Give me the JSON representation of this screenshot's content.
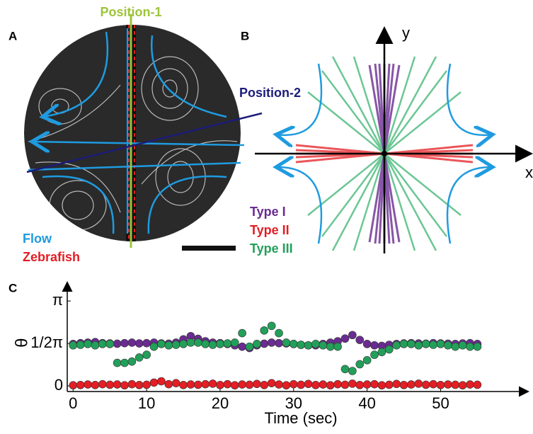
{
  "panels": {
    "a": {
      "label": "A",
      "position_1": "Position-1",
      "position_2": "Position-2",
      "flow": "Flow",
      "zebrafish": "Zebrafish"
    },
    "b": {
      "label": "B",
      "x_axis": "x",
      "y_axis": "y",
      "type_1": "Type I",
      "type_2": "Type II",
      "type_3": "Type III"
    },
    "c": {
      "label": "C"
    }
  },
  "chart_data": {
    "type": "scatter",
    "x_label": "Time (sec)",
    "y_label": "θ",
    "x": [
      0,
      1,
      2,
      3,
      4,
      5,
      6,
      7,
      8,
      9,
      10,
      11,
      12,
      13,
      14,
      15,
      16,
      17,
      18,
      19,
      20,
      21,
      22,
      23,
      24,
      25,
      26,
      27,
      28,
      29,
      30,
      31,
      32,
      33,
      34,
      35,
      36,
      37,
      38,
      39,
      40,
      41,
      42,
      43,
      44,
      45,
      46,
      47,
      48,
      49,
      50,
      51,
      52,
      53,
      54,
      55
    ],
    "series": [
      {
        "name": "Type I",
        "color": "#6a2c91",
        "values": [
          1.55,
          1.58,
          1.6,
          1.62,
          1.58,
          1.57,
          1.56,
          1.58,
          1.6,
          1.57,
          1.58,
          1.6,
          1.57,
          1.56,
          1.6,
          1.72,
          1.84,
          1.74,
          1.65,
          1.6,
          1.58,
          1.55,
          1.5,
          1.45,
          1.4,
          1.5,
          1.56,
          1.6,
          1.58,
          1.57,
          1.55,
          1.52,
          1.5,
          1.5,
          1.55,
          1.6,
          1.65,
          1.75,
          1.88,
          1.7,
          1.55,
          1.5,
          1.48,
          1.52,
          1.55,
          1.57,
          1.58,
          1.57,
          1.56,
          1.58,
          1.57,
          1.56,
          1.55,
          1.57,
          1.58,
          1.55
        ]
      },
      {
        "name": "Type II",
        "color": "#e31e24",
        "values": [
          0.02,
          0.03,
          0.05,
          0.03,
          0.06,
          0.04,
          0.05,
          0.02,
          0.06,
          0.03,
          0.04,
          0.12,
          0.17,
          0.06,
          0.1,
          0.03,
          0.05,
          0.04,
          0.06,
          0.08,
          0.03,
          0.06,
          0.02,
          0.05,
          0.04,
          0.07,
          0.03,
          0.1,
          0.05,
          0.02,
          0.06,
          0.04,
          0.07,
          0.03,
          0.05,
          0.02,
          0.06,
          0.04,
          0.08,
          0.03,
          0.05,
          0.06,
          0.02,
          0.04,
          0.07,
          0.03,
          0.05,
          0.08,
          0.04,
          0.06,
          0.03,
          0.05,
          0.04,
          0.02,
          0.05,
          0.04
        ]
      },
      {
        "name": "Type III",
        "color": "#22a05a",
        "values": [
          1.5,
          1.52,
          1.55,
          1.5,
          1.55,
          1.55,
          0.85,
          0.85,
          0.9,
          1.05,
          1.15,
          1.45,
          1.55,
          1.5,
          1.52,
          1.55,
          1.6,
          1.6,
          1.55,
          1.52,
          1.55,
          1.57,
          1.6,
          1.95,
          1.45,
          1.55,
          2.05,
          2.22,
          1.95,
          1.6,
          1.55,
          1.52,
          1.5,
          1.55,
          1.5,
          1.45,
          1.45,
          0.62,
          0.55,
          0.8,
          0.95,
          1.15,
          1.25,
          1.35,
          1.5,
          1.55,
          1.55,
          1.5,
          1.55,
          1.52,
          1.55,
          1.5,
          1.45,
          1.5,
          1.45,
          1.45
        ]
      }
    ],
    "xlim": [
      -0.8,
      61.8
    ],
    "ylim": [
      -0.21,
      3.8
    ],
    "xticks": [
      0,
      10,
      20,
      30,
      40,
      50
    ],
    "yticks": [
      0,
      {
        "value": 1.5708,
        "label": "1/2π"
      },
      {
        "value": 3.1416,
        "label": "π"
      }
    ]
  }
}
